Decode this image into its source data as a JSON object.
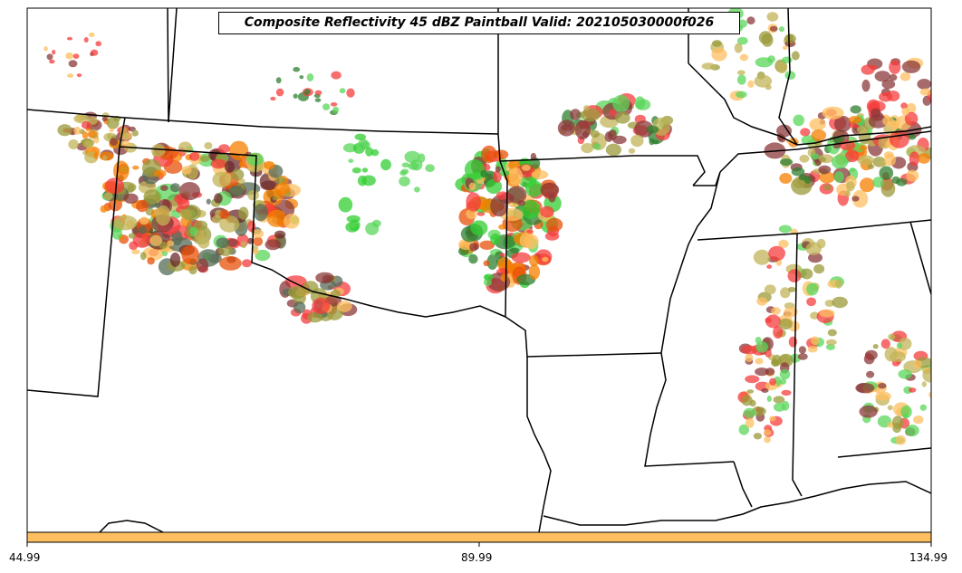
{
  "title": "Composite Reflectivity 45 dBZ Paintball Valid: 202105030000f026",
  "colorbar": {
    "ticks": [
      "44.99",
      "89.99",
      "134.99"
    ],
    "color": "#fdbf60"
  },
  "palette": {
    "red": "#f53c3c",
    "orange": "#f57f00",
    "dark-orange": "#e8500a",
    "light-orange": "#fdbf60",
    "olive": "#9a9a3a",
    "khaki": "#c2b458",
    "green": "#5ad65a",
    "bright-green": "#32cd32",
    "dark-green": "#2f7f2f",
    "brown": "#8b3a3a",
    "dark-brown": "#6b2a2a",
    "gray-green": "#556b55"
  }
}
